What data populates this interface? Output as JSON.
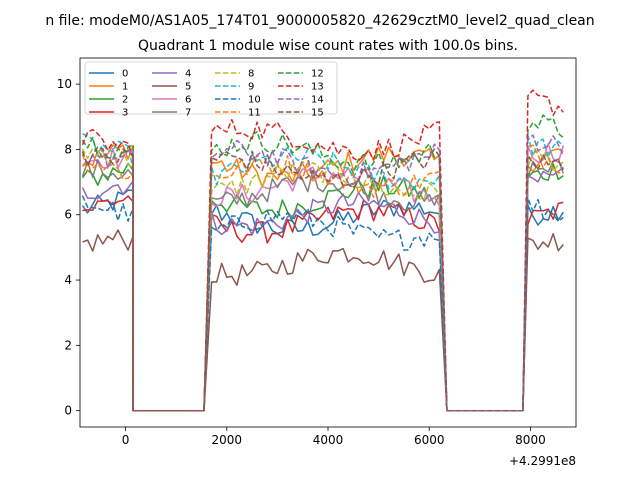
{
  "chart_data": {
    "type": "line",
    "suptitle": "n file: modeM0/AS1A05_174T01_9000005820_42629cztM0_level2_quad_clean",
    "title": "Quadrant 1 module wise count rates with 100.0s bins.",
    "xlabel": "",
    "ylabel": "",
    "x_offset_label": "+4.2991e8",
    "x_offset": 429910000,
    "xlim": [
      -900,
      8900
    ],
    "ylim": [
      -0.5,
      10.8
    ],
    "x_ticks": [
      0,
      2000,
      4000,
      6000,
      8000
    ],
    "y_ticks": [
      0,
      2,
      4,
      6,
      8,
      10
    ],
    "grid": false,
    "legend": {
      "placement": "upper-left",
      "columns": 4
    },
    "segments": [
      {
        "start": -850,
        "end": 150
      },
      {
        "start": 1700,
        "end": 6200
      },
      {
        "start": 7950,
        "end": 8700
      }
    ],
    "gaps": [
      {
        "start": 150,
        "end": 1550
      },
      {
        "start": 6350,
        "end": 7850
      }
    ],
    "series": [
      {
        "name": "0",
        "color": "#1f77b4",
        "dash": "solid",
        "levels": [
          6.5,
          5.9,
          6.3
        ]
      },
      {
        "name": "1",
        "color": "#ff7f0e",
        "dash": "solid",
        "levels": [
          7.9,
          7.5,
          7.9
        ]
      },
      {
        "name": "2",
        "color": "#2ca02c",
        "dash": "solid",
        "levels": [
          7.2,
          6.5,
          7.3
        ]
      },
      {
        "name": "3",
        "color": "#d62728",
        "dash": "solid",
        "levels": [
          6.2,
          5.8,
          5.9
        ]
      },
      {
        "name": "4",
        "color": "#9467bd",
        "dash": "solid",
        "levels": [
          6.6,
          6.0,
          6.8
        ]
      },
      {
        "name": "5",
        "color": "#8c564b",
        "dash": "solid",
        "levels": [
          4.9,
          4.5,
          4.9
        ]
      },
      {
        "name": "6",
        "color": "#e377c2",
        "dash": "solid",
        "levels": [
          7.4,
          6.9,
          7.6
        ]
      },
      {
        "name": "7",
        "color": "#7f7f7f",
        "dash": "solid",
        "levels": [
          7.0,
          6.7,
          7.1
        ]
      },
      {
        "name": "8",
        "color": "#bcbd22",
        "dash": "dashed",
        "levels": [
          7.6,
          7.0,
          7.4
        ]
      },
      {
        "name": "9",
        "color": "#17becf",
        "dash": "dashed",
        "levels": [
          7.8,
          7.4,
          7.8
        ]
      },
      {
        "name": "10",
        "color": "#1f77b4",
        "dash": "dashed",
        "levels": [
          6.1,
          5.6,
          6.0
        ]
      },
      {
        "name": "11",
        "color": "#ff7f0e",
        "dash": "dashed",
        "levels": [
          7.5,
          7.2,
          7.7
        ]
      },
      {
        "name": "12",
        "color": "#2ca02c",
        "dash": "dashed",
        "levels": [
          8.2,
          7.9,
          8.8
        ]
      },
      {
        "name": "13",
        "color": "#d62728",
        "dash": "dashed",
        "levels": [
          8.4,
          8.3,
          9.6
        ]
      },
      {
        "name": "14",
        "color": "#9467bd",
        "dash": "dashed",
        "levels": [
          8.0,
          7.6,
          8.5
        ]
      },
      {
        "name": "15",
        "color": "#8c564b",
        "dash": "dashed",
        "levels": [
          8.1,
          7.4,
          7.9
        ]
      }
    ]
  }
}
